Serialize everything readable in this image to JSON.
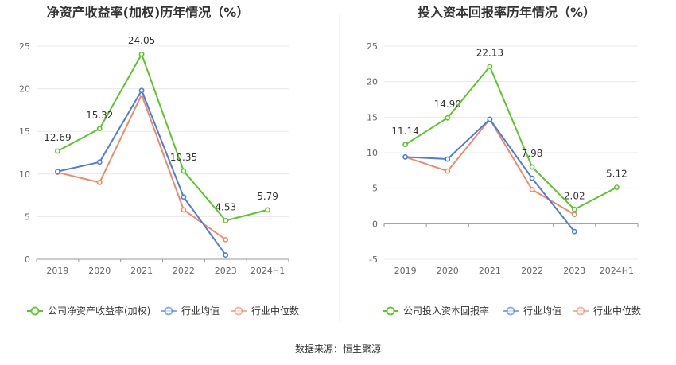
{
  "source_note": "数据来源：恒生聚源",
  "chart_data": [
    {
      "type": "line",
      "title": "净资产收益率(加权)历年情况（%）",
      "categories": [
        "2019",
        "2020",
        "2021",
        "2022",
        "2023",
        "2024H1"
      ],
      "ylim": [
        0,
        25
      ],
      "yticks": [
        0,
        5,
        10,
        15,
        20,
        25
      ],
      "grid": true,
      "legend_position": "bottom",
      "series": [
        {
          "name": "公司净资产收益率(加权)",
          "color": "#5ac629",
          "values": [
            12.69,
            15.32,
            24.05,
            10.35,
            4.53,
            5.79
          ],
          "labels": [
            "12.69",
            "15.32",
            "24.05",
            "10.35",
            "4.53",
            "5.79"
          ]
        },
        {
          "name": "行业均值",
          "color": "#4b7de0",
          "values": [
            10.3,
            11.4,
            19.8,
            7.3,
            0.5,
            null
          ]
        },
        {
          "name": "行业中位数",
          "color": "#f08a63",
          "values": [
            10.2,
            9.0,
            19.3,
            5.8,
            2.3,
            null
          ]
        }
      ]
    },
    {
      "type": "line",
      "title": "投入资本回报率历年情况（%）",
      "categories": [
        "2019",
        "2020",
        "2021",
        "2022",
        "2023",
        "2024H1"
      ],
      "ylim": [
        -5,
        25
      ],
      "yticks": [
        -5,
        0,
        5,
        10,
        15,
        20,
        25
      ],
      "grid": true,
      "legend_position": "bottom",
      "series": [
        {
          "name": "公司投入资本回报率",
          "color": "#5ac629",
          "values": [
            11.14,
            14.9,
            22.13,
            7.98,
            2.02,
            5.12
          ],
          "labels": [
            "11.14",
            "14.90",
            "22.13",
            "7.98",
            "2.02",
            "5.12"
          ]
        },
        {
          "name": "行业均值",
          "color": "#4b7de0",
          "values": [
            9.4,
            9.1,
            14.7,
            6.4,
            -1.1,
            null
          ]
        },
        {
          "name": "行业中位数",
          "color": "#f08a63",
          "values": [
            9.4,
            7.4,
            14.7,
            4.8,
            1.3,
            null
          ]
        }
      ]
    }
  ]
}
